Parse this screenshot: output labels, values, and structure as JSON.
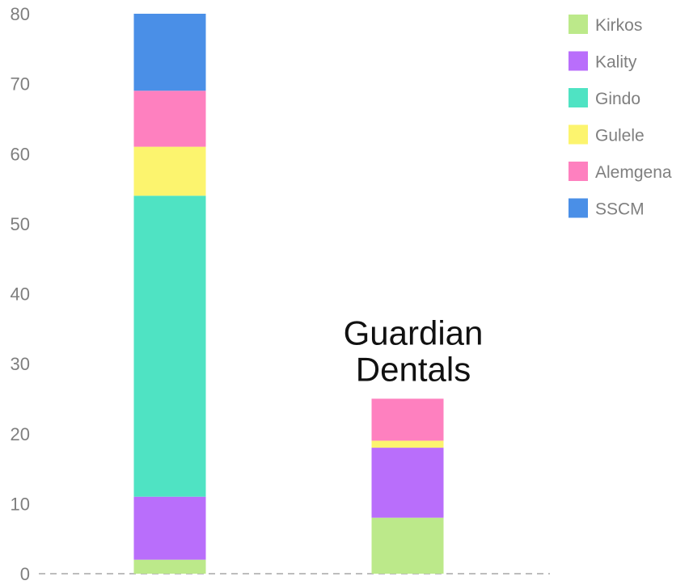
{
  "chart_data": {
    "type": "bar",
    "stacked": true,
    "categories": [
      "",
      "Guardian\nDentals"
    ],
    "series": [
      {
        "name": "Kirkos",
        "color": "#bce98a",
        "values": [
          2,
          8
        ]
      },
      {
        "name": "Kality",
        "color": "#b96efb",
        "values": [
          9,
          10
        ]
      },
      {
        "name": "Gindo",
        "color": "#4fe3c3",
        "values": [
          43,
          0
        ]
      },
      {
        "name": "Gulele",
        "color": "#fcf46e",
        "values": [
          7,
          1
        ]
      },
      {
        "name": "Alemgena",
        "color": "#fe80bf",
        "values": [
          8,
          6
        ]
      },
      {
        "name": "SSCM",
        "color": "#4a8fe7",
        "values": [
          11,
          0
        ]
      }
    ],
    "yticks": [
      "0",
      "10",
      "20",
      "30",
      "40",
      "50",
      "60",
      "70",
      "80"
    ],
    "ylim": [
      0,
      80
    ],
    "title": "",
    "xlabel": "",
    "ylabel": "",
    "grid": false,
    "legend_position": "top-right",
    "annotations": [
      {
        "text": "Guardian\nDentals",
        "category_index": 1
      }
    ],
    "colors": {
      "tick_text": "#7f7f7f",
      "legend_text": "#7f7f7f",
      "annotation_text": "#111111",
      "baseline": "#bdbdbd"
    }
  }
}
